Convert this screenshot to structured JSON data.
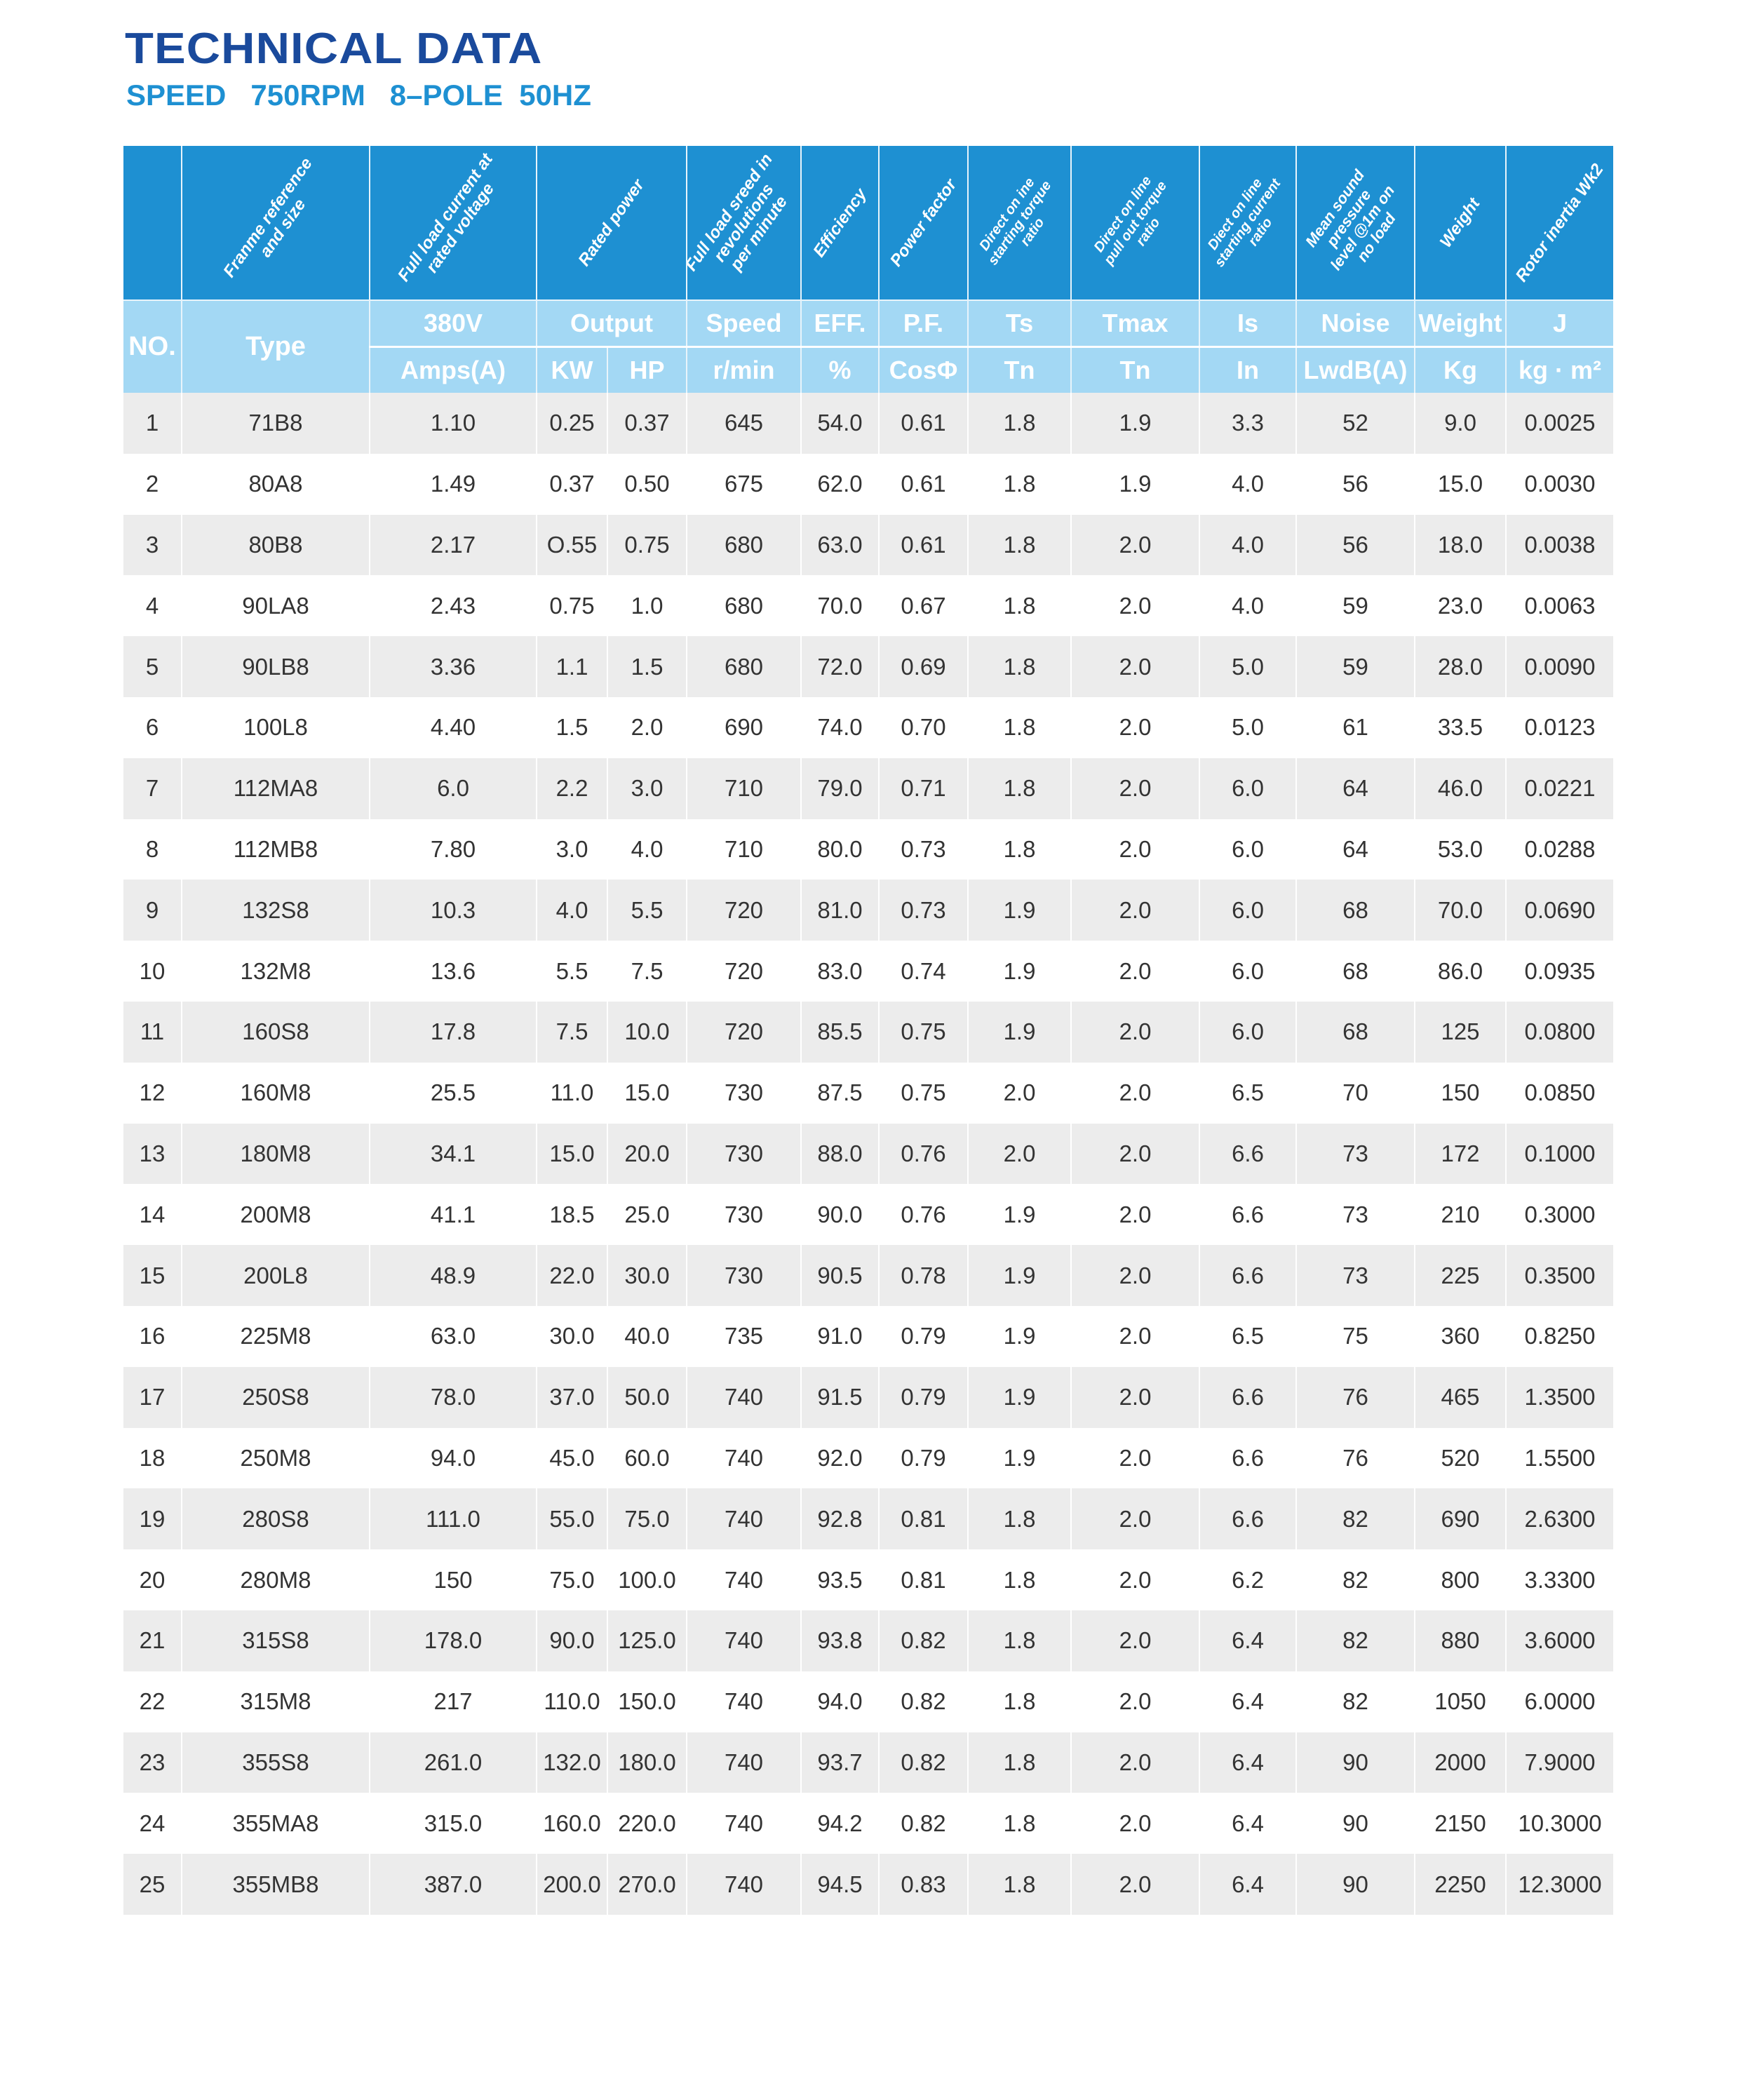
{
  "title": "TECHNICAL DATA",
  "subtitle": "SPEED   750RPM   8–POLE  50HZ",
  "colors": {
    "title": "#1a4a9c",
    "accent": "#1e90d2",
    "subheader": "#a3d8f4",
    "row_alt": "#ececec"
  },
  "header": {
    "rotated": [
      "Franme reference\nand size",
      "Full load current at\nrated voltage",
      "Rated power",
      "Full load sreed in\nrevolutions\nper minute",
      "Efficiency",
      "Power factor",
      "Direct on ine\nstarting torque\nratio",
      "Direct on line\npull out torque\nratio",
      "Diect on line\nstarting current\nratio",
      "Mean sound\npressure\nlevel @1m on\nno load",
      "Weight",
      "Rotor inertia Wk2"
    ],
    "row2": {
      "no": "NO.",
      "type": "Type",
      "volt": "380V",
      "output": "Output",
      "speed": "Speed",
      "eff": "EFF.",
      "pf": "P.F.",
      "ts": "Ts",
      "tmax": "Tmax",
      "is": "Is",
      "noise": "Noise",
      "weight": "Weight",
      "j": "J"
    },
    "row3": {
      "amps": "Amps(A)",
      "kw": "KW",
      "hp": "HP",
      "rmin": "r/min",
      "pct": "%",
      "cos": "CosΦ",
      "tn1": "Tn",
      "tn2": "Tn",
      "in": "In",
      "lwdb": "LwdB(A)",
      "kg": "Kg",
      "kgm2": "kg · m²"
    }
  },
  "rows": [
    [
      "1",
      "71B8",
      "1.10",
      "0.25",
      "0.37",
      "645",
      "54.0",
      "0.61",
      "1.8",
      "1.9",
      "3.3",
      "52",
      "9.0",
      "0.0025"
    ],
    [
      "2",
      "80A8",
      "1.49",
      "0.37",
      "0.50",
      "675",
      "62.0",
      "0.61",
      "1.8",
      "1.9",
      "4.0",
      "56",
      "15.0",
      "0.0030"
    ],
    [
      "3",
      "80B8",
      "2.17",
      "O.55",
      "0.75",
      "680",
      "63.0",
      "0.61",
      "1.8",
      "2.0",
      "4.0",
      "56",
      "18.0",
      "0.0038"
    ],
    [
      "4",
      "90LA8",
      "2.43",
      "0.75",
      "1.0",
      "680",
      "70.0",
      "0.67",
      "1.8",
      "2.0",
      "4.0",
      "59",
      "23.0",
      "0.0063"
    ],
    [
      "5",
      "90LB8",
      "3.36",
      "1.1",
      "1.5",
      "680",
      "72.0",
      "0.69",
      "1.8",
      "2.0",
      "5.0",
      "59",
      "28.0",
      "0.0090"
    ],
    [
      "6",
      "100L8",
      "4.40",
      "1.5",
      "2.0",
      "690",
      "74.0",
      "0.70",
      "1.8",
      "2.0",
      "5.0",
      "61",
      "33.5",
      "0.0123"
    ],
    [
      "7",
      "112MA8",
      "6.0",
      "2.2",
      "3.0",
      "710",
      "79.0",
      "0.71",
      "1.8",
      "2.0",
      "6.0",
      "64",
      "46.0",
      "0.0221"
    ],
    [
      "8",
      "112MB8",
      "7.80",
      "3.0",
      "4.0",
      "710",
      "80.0",
      "0.73",
      "1.8",
      "2.0",
      "6.0",
      "64",
      "53.0",
      "0.0288"
    ],
    [
      "9",
      "132S8",
      "10.3",
      "4.0",
      "5.5",
      "720",
      "81.0",
      "0.73",
      "1.9",
      "2.0",
      "6.0",
      "68",
      "70.0",
      "0.0690"
    ],
    [
      "10",
      "132M8",
      "13.6",
      "5.5",
      "7.5",
      "720",
      "83.0",
      "0.74",
      "1.9",
      "2.0",
      "6.0",
      "68",
      "86.0",
      "0.0935"
    ],
    [
      "11",
      "160S8",
      "17.8",
      "7.5",
      "10.0",
      "720",
      "85.5",
      "0.75",
      "1.9",
      "2.0",
      "6.0",
      "68",
      "125",
      "0.0800"
    ],
    [
      "12",
      "160M8",
      "25.5",
      "11.0",
      "15.0",
      "730",
      "87.5",
      "0.75",
      "2.0",
      "2.0",
      "6.5",
      "70",
      "150",
      "0.0850"
    ],
    [
      "13",
      "180M8",
      "34.1",
      "15.0",
      "20.0",
      "730",
      "88.0",
      "0.76",
      "2.0",
      "2.0",
      "6.6",
      "73",
      "172",
      "0.1000"
    ],
    [
      "14",
      "200M8",
      "41.1",
      "18.5",
      "25.0",
      "730",
      "90.0",
      "0.76",
      "1.9",
      "2.0",
      "6.6",
      "73",
      "210",
      "0.3000"
    ],
    [
      "15",
      "200L8",
      "48.9",
      "22.0",
      "30.0",
      "730",
      "90.5",
      "0.78",
      "1.9",
      "2.0",
      "6.6",
      "73",
      "225",
      "0.3500"
    ],
    [
      "16",
      "225M8",
      "63.0",
      "30.0",
      "40.0",
      "735",
      "91.0",
      "0.79",
      "1.9",
      "2.0",
      "6.5",
      "75",
      "360",
      "0.8250"
    ],
    [
      "17",
      "250S8",
      "78.0",
      "37.0",
      "50.0",
      "740",
      "91.5",
      "0.79",
      "1.9",
      "2.0",
      "6.6",
      "76",
      "465",
      "1.3500"
    ],
    [
      "18",
      "250M8",
      "94.0",
      "45.0",
      "60.0",
      "740",
      "92.0",
      "0.79",
      "1.9",
      "2.0",
      "6.6",
      "76",
      "520",
      "1.5500"
    ],
    [
      "19",
      "280S8",
      "111.0",
      "55.0",
      "75.0",
      "740",
      "92.8",
      "0.81",
      "1.8",
      "2.0",
      "6.6",
      "82",
      "690",
      "2.6300"
    ],
    [
      "20",
      "280M8",
      "150",
      "75.0",
      "100.0",
      "740",
      "93.5",
      "0.81",
      "1.8",
      "2.0",
      "6.2",
      "82",
      "800",
      "3.3300"
    ],
    [
      "21",
      "315S8",
      "178.0",
      "90.0",
      "125.0",
      "740",
      "93.8",
      "0.82",
      "1.8",
      "2.0",
      "6.4",
      "82",
      "880",
      "3.6000"
    ],
    [
      "22",
      "315M8",
      "217",
      "110.0",
      "150.0",
      "740",
      "94.0",
      "0.82",
      "1.8",
      "2.0",
      "6.4",
      "82",
      "1050",
      "6.0000"
    ],
    [
      "23",
      "355S8",
      "261.0",
      "132.0",
      "180.0",
      "740",
      "93.7",
      "0.82",
      "1.8",
      "2.0",
      "6.4",
      "90",
      "2000",
      "7.9000"
    ],
    [
      "24",
      "355MA8",
      "315.0",
      "160.0",
      "220.0",
      "740",
      "94.2",
      "0.82",
      "1.8",
      "2.0",
      "6.4",
      "90",
      "2150",
      "10.3000"
    ],
    [
      "25",
      "355MB8",
      "387.0",
      "200.0",
      "270.0",
      "740",
      "94.5",
      "0.83",
      "1.8",
      "2.0",
      "6.4",
      "90",
      "2250",
      "12.3000"
    ]
  ]
}
